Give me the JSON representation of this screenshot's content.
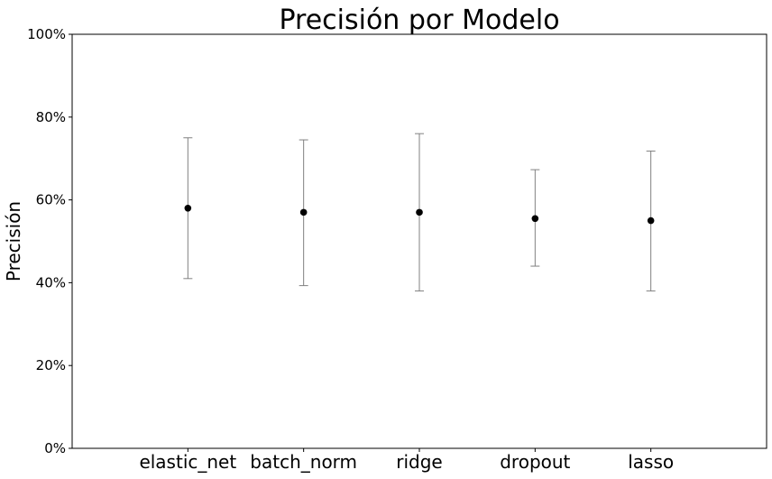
{
  "chart_data": {
    "type": "errorbar",
    "title": "Precisión por Modelo",
    "xlabel": "",
    "ylabel": "Precisión",
    "ylim": [
      0,
      100
    ],
    "yticks": [
      0,
      20,
      40,
      60,
      80,
      100
    ],
    "ytick_labels": [
      "0%",
      "20%",
      "40%",
      "60%",
      "80%",
      "100%"
    ],
    "grid": false,
    "categories": [
      "elastic_net",
      "batch_norm",
      "ridge",
      "dropout",
      "lasso"
    ],
    "values": [
      58,
      57,
      57,
      55.5,
      55
    ],
    "error_low": [
      41,
      39.3,
      38,
      44,
      38
    ],
    "error_high": [
      75,
      74.5,
      76,
      67.3,
      71.8
    ],
    "marker_color": "#000000",
    "errorbar_color": "#808080"
  }
}
